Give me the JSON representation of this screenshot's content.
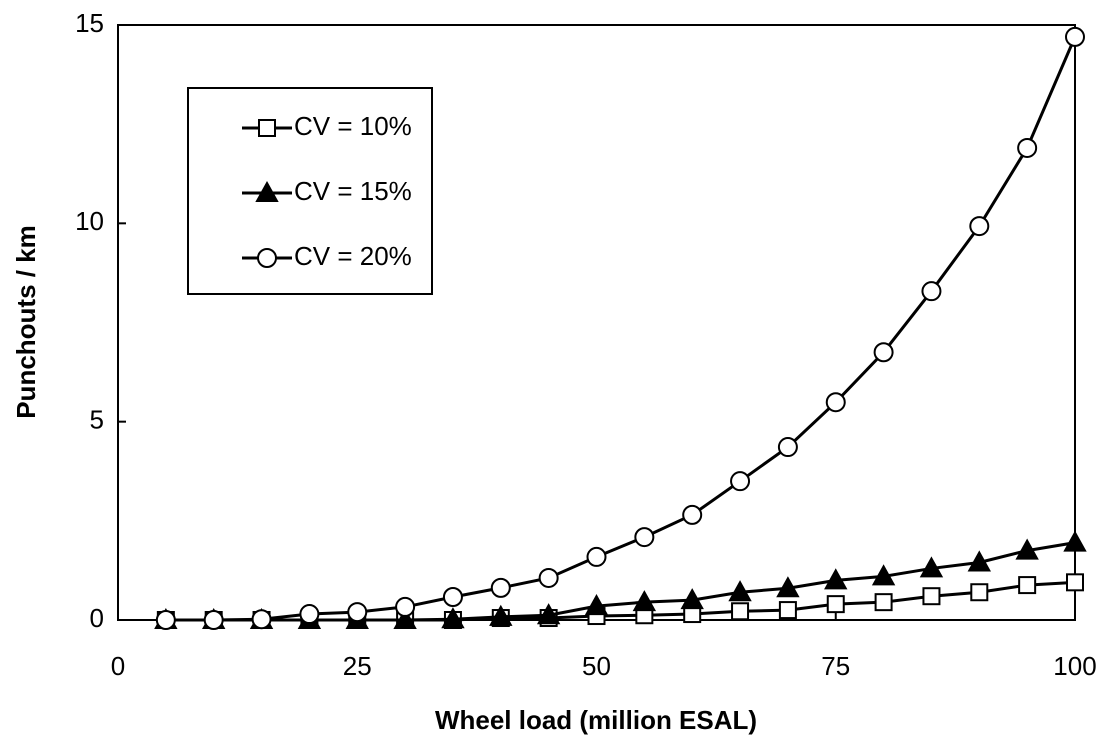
{
  "chart_data": {
    "type": "line",
    "x_label": "Wheel load (million ESAL)",
    "y_label": "Punchouts / km",
    "x": [
      5,
      10,
      15,
      20,
      25,
      30,
      35,
      40,
      45,
      50,
      55,
      60,
      65,
      70,
      75,
      80,
      85,
      90,
      95,
      100
    ],
    "series": [
      {
        "name": "CV = 10%",
        "color": "#000000",
        "marker": "square",
        "marker_fill": "#ffffff",
        "values": [
          0,
          0,
          0,
          0,
          0,
          0,
          0,
          0.05,
          0.05,
          0.1,
          0.12,
          0.15,
          0.22,
          0.25,
          0.4,
          0.45,
          0.6,
          0.7,
          0.88,
          0.95
        ]
      },
      {
        "name": "CV = 15%",
        "color": "#000000",
        "marker": "triangle",
        "marker_fill": "#000000",
        "values": [
          0,
          0,
          0,
          0,
          0,
          0,
          0.02,
          0.08,
          0.12,
          0.35,
          0.45,
          0.5,
          0.7,
          0.8,
          1.0,
          1.1,
          1.3,
          1.45,
          1.75,
          1.95
        ]
      },
      {
        "name": "CV = 20%",
        "color": "#000000",
        "marker": "circle",
        "marker_fill": "#ffffff",
        "values": [
          0,
          0,
          0.02,
          0.15,
          0.2,
          0.33,
          0.58,
          0.81,
          1.06,
          1.59,
          2.09,
          2.65,
          3.5,
          4.36,
          5.49,
          6.75,
          8.29,
          9.93,
          11.9,
          14.7
        ]
      }
    ],
    "xlim": [
      0,
      100
    ],
    "xticks": [
      0,
      25,
      50,
      75,
      100
    ],
    "ylim": [
      0,
      15
    ],
    "yticks": [
      0,
      5,
      10,
      15
    ],
    "grid": false,
    "legend_position": "upper left"
  }
}
